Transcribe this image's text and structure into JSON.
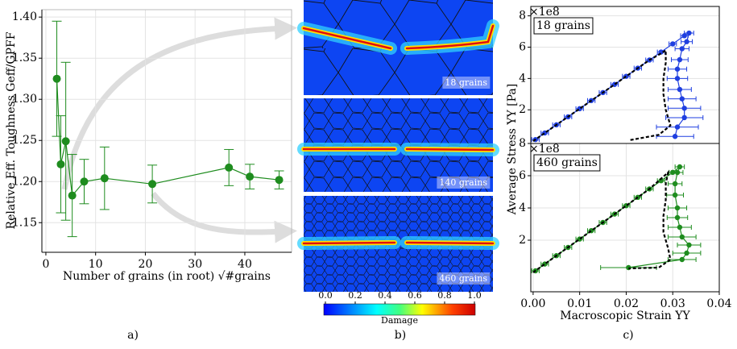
{
  "chart_data": [
    {
      "type": "errorbar",
      "xlabel": "Number of grains (in root) √#grains",
      "ylabel": "Relative Eff. Toughness Geff/GPFF",
      "xlim": [
        -0.8,
        49.4
      ],
      "ylim": [
        1.114,
        1.409
      ],
      "xticks": [
        0,
        10,
        20,
        30,
        40
      ],
      "yticks": [
        1.15,
        {
          "value": 1.2,
          "label": "1.20"
        },
        1.25,
        {
          "value": 1.3,
          "label": "1.30"
        },
        1.35,
        {
          "value": 1.4,
          "label": "1.40"
        }
      ],
      "grid": true,
      "series": [
        {
          "color": "#1e8c1e",
          "x": [
            2.2,
            3,
            4,
            5.3,
            7.7,
            11.8,
            21.4,
            36.8,
            41,
            46.9
          ],
          "values": [
            1.325,
            1.221,
            1.249,
            1.183,
            1.2,
            1.204,
            1.197,
            1.217,
            1.206,
            1.202
          ],
          "yerr": [
            0.07,
            0.059,
            0.096,
            0.05,
            0.027,
            0.038,
            0.023,
            0.022,
            0.015,
            0.011
          ]
        }
      ]
    },
    {
      "type": "errorbar",
      "ylabel": "Average Stress YY [Pa]",
      "offset_text": "×1e8",
      "annotation": "18 grains",
      "xlim": [
        -0.0005,
        0.04
      ],
      "ylim": [
        -0.15,
        8.6
      ],
      "yticks": [
        2,
        4,
        6,
        8
      ],
      "grid": true,
      "series": [
        {
          "color": "#1f3fe0",
          "x": [
            0.0005,
            0.0025,
            0.005,
            0.0075,
            0.01,
            0.0125,
            0.015,
            0.0175,
            0.02,
            0.0225,
            0.025,
            0.0275,
            0.03,
            0.0325,
            0.0335,
            0.033,
            0.032,
            0.0315,
            0.031,
            0.031,
            0.0315,
            0.032,
            0.0325,
            0.0325,
            0.031,
            0.0305
          ],
          "values": [
            0.1,
            0.52,
            1.04,
            1.55,
            2.07,
            2.59,
            3.1,
            3.62,
            4.14,
            4.66,
            5.18,
            5.69,
            6.21,
            6.73,
            6.9,
            6.35,
            5.9,
            5.2,
            4.6,
            4.0,
            3.3,
            2.7,
            2.1,
            1.5,
            0.9,
            0.3
          ],
          "xerr": [
            0.0008,
            0.0008,
            0.0008,
            0.0008,
            0.0008,
            0.0008,
            0.0008,
            0.0008,
            0.0008,
            0.0008,
            0.0008,
            0.0008,
            0.0008,
            0.0008,
            0.001,
            0.0012,
            0.0015,
            0.0018,
            0.002,
            0.0022,
            0.0025,
            0.003,
            0.0035,
            0.004,
            0.0045,
            0.004
          ]
        },
        {
          "color": "#000000",
          "dash": true,
          "x": [
            0,
            0.005,
            0.01,
            0.015,
            0.02,
            0.025,
            0.0275,
            0.0285,
            0.0285,
            0.028,
            0.028,
            0.0285,
            0.0295,
            0.027,
            0.0205
          ],
          "values": [
            0,
            1.04,
            2.07,
            3.1,
            4.14,
            5.18,
            5.6,
            5.8,
            5.0,
            4.0,
            3.0,
            2.0,
            1.0,
            0.4,
            0.05
          ]
        }
      ]
    },
    {
      "type": "errorbar",
      "xlabel": "Macroscopic Strain YY",
      "offset_text": "×1e8",
      "annotation": "460 grains",
      "xlim": [
        -0.0005,
        0.04
      ],
      "ylim": [
        -1.2,
        8.0
      ],
      "xticks": [
        {
          "value": 0,
          "label": "0.00"
        },
        0.01,
        0.02,
        0.03,
        0.04
      ],
      "yticks": [
        2,
        4,
        6,
        8
      ],
      "grid": true,
      "series": [
        {
          "color": "#1e8c1e",
          "x": [
            0.0005,
            0.0025,
            0.005,
            0.0075,
            0.01,
            0.0125,
            0.015,
            0.0175,
            0.02,
            0.0225,
            0.025,
            0.0275,
            0.03,
            0.0315,
            0.031,
            0.0305,
            0.0305,
            0.031,
            0.031,
            0.0315,
            0.032,
            0.0335,
            0.033,
            0.032,
            0.0205
          ],
          "values": [
            0.1,
            0.52,
            1.04,
            1.55,
            2.07,
            2.59,
            3.1,
            3.62,
            4.14,
            4.66,
            5.18,
            5.69,
            6.21,
            6.55,
            6.2,
            5.5,
            4.8,
            4.0,
            3.4,
            2.8,
            2.2,
            1.7,
            1.2,
            0.8,
            0.3
          ],
          "xerr": [
            0.0008,
            0.0008,
            0.0008,
            0.0008,
            0.0008,
            0.0008,
            0.0008,
            0.0008,
            0.0008,
            0.0008,
            0.0008,
            0.0008,
            0.0008,
            0.001,
            0.0012,
            0.0015,
            0.0018,
            0.002,
            0.0022,
            0.0025,
            0.003,
            0.0025,
            0.003,
            0.003,
            0.006
          ]
        },
        {
          "color": "#000000",
          "dash": true,
          "x": [
            0,
            0.005,
            0.01,
            0.015,
            0.02,
            0.025,
            0.029,
            0.0285,
            0.0285,
            0.028,
            0.028,
            0.029,
            0.0295,
            0.027,
            0.0205
          ],
          "values": [
            0,
            1.04,
            2.07,
            3.1,
            4.14,
            5.18,
            6.2,
            5.5,
            4.5,
            3.5,
            2.5,
            1.5,
            0.8,
            0.3,
            0.25
          ]
        }
      ]
    }
  ],
  "fields": {
    "labels": [
      "18 grains",
      "140 grains",
      "460 grains"
    ],
    "colorbar": {
      "label": "Damage",
      "lim": [
        0,
        1
      ],
      "ticks": [
        {
          "value": 0,
          "label": "0.0"
        },
        0.2,
        0.4,
        0.6,
        0.8,
        {
          "value": 1,
          "label": "1.0"
        }
      ]
    }
  },
  "panel_labels": [
    "a)",
    "b)",
    "c)"
  ]
}
